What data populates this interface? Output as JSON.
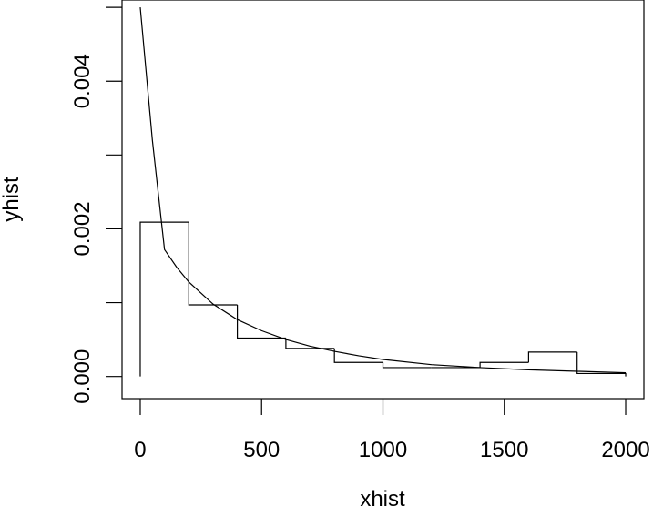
{
  "chart_data": {
    "type": "step",
    "xlabel": "xhist",
    "ylabel": "yhist",
    "xlim": [
      -75,
      2075
    ],
    "ylim": [
      -0.0003,
      0.0051
    ],
    "x_ticks": [
      0,
      500,
      1000,
      1500,
      2000
    ],
    "x_tick_labels": [
      "0",
      "500",
      "1000",
      "1500",
      "2000"
    ],
    "y_ticks": [
      0.0,
      0.001,
      0.002,
      0.003,
      0.004,
      0.005
    ],
    "y_tick_labels": [
      "0.000",
      "",
      "0.002",
      "",
      "0.004",
      ""
    ],
    "histogram": {
      "bin_edges": [
        0,
        200,
        400,
        600,
        800,
        1000,
        1200,
        1400,
        1600,
        1800,
        2000
      ],
      "densities": [
        0.00209,
        0.00097,
        0.00052,
        0.00038,
        0.00019,
        0.00012,
        0.00012,
        0.00019,
        0.00033,
        4e-05
      ]
    },
    "curve": {
      "x": [
        0,
        50,
        100,
        150,
        200,
        300,
        400,
        500,
        600,
        700,
        800,
        900,
        1000,
        1200,
        1400,
        1600,
        1800,
        2000
      ],
      "y": [
        0.005,
        0.0032,
        0.00172,
        0.00148,
        0.00128,
        0.00098,
        0.00077,
        0.00062,
        0.0005,
        0.00041,
        0.00034,
        0.00028,
        0.00023,
        0.00016,
        0.00012,
        9e-05,
        7e-05,
        5e-05
      ]
    },
    "colors": {
      "line": "#000000",
      "background": "#ffffff"
    }
  }
}
